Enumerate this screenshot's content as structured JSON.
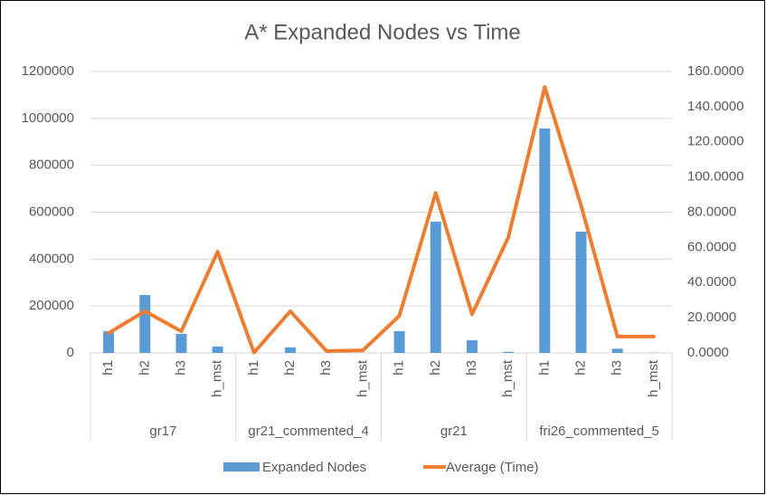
{
  "chart_data": {
    "type": "combo",
    "title": "A* Expanded Nodes vs Time",
    "categories": [
      "h1",
      "h2",
      "h3",
      "h_mst",
      "h1",
      "h2",
      "h3",
      "h_mst",
      "h1",
      "h2",
      "h3",
      "h_mst",
      "h1",
      "h2",
      "h3",
      "h_mst"
    ],
    "category_groups": [
      "gr17",
      "gr21_commented_4",
      "gr21",
      "fri26_commented_5"
    ],
    "series": [
      {
        "name": "Expanded Nodes",
        "type": "bar",
        "color": "#5b9bd5",
        "values": [
          93000,
          247000,
          81000,
          27000,
          500,
          24000,
          300,
          800,
          93000,
          560000,
          54000,
          5000,
          957000,
          517000,
          18000,
          1000
        ]
      },
      {
        "name": "Average (Time)",
        "type": "line",
        "axis": "y2",
        "color": "#ed7d31",
        "values": [
          11.3,
          23.7,
          12.3,
          57.6,
          0.2,
          23.7,
          1,
          1.5,
          21.1,
          91,
          22,
          65.8,
          151.2,
          83.8,
          9.3,
          9.3
        ]
      }
    ],
    "ylim": [
      0,
      1200000
    ],
    "yticks": [
      0,
      200000,
      400000,
      600000,
      800000,
      1000000,
      1200000
    ],
    "y2lim": [
      0,
      160
    ],
    "y2ticks": [
      {
        "value": 0,
        "label": "0.0000"
      },
      {
        "value": 20,
        "label": "20.0000"
      },
      {
        "value": 40,
        "label": "40.0000"
      },
      {
        "value": 60,
        "label": "60.0000"
      },
      {
        "value": 80,
        "label": "80.0000"
      },
      {
        "value": 100,
        "label": "100.0000"
      },
      {
        "value": 120,
        "label": "120.0000"
      },
      {
        "value": 140,
        "label": "140.0000"
      },
      {
        "value": 160,
        "label": "160.0000"
      }
    ],
    "grid": true,
    "legend": "bottom"
  }
}
